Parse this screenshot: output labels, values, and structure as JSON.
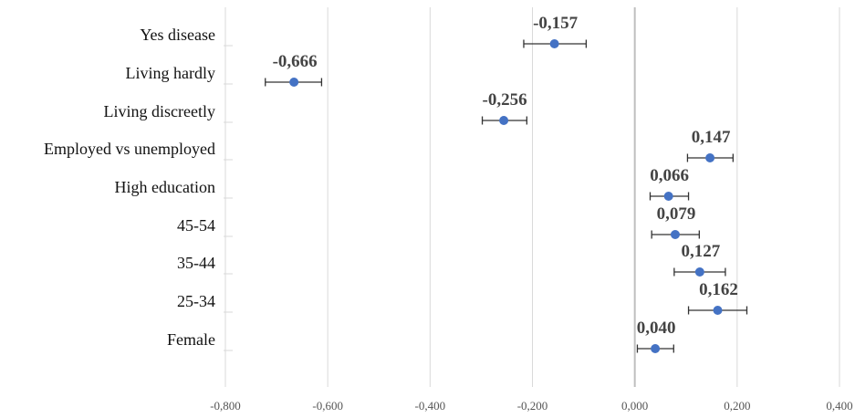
{
  "chart_data": {
    "type": "scatter",
    "title": "",
    "xlabel": "",
    "ylabel": "",
    "xlim": [
      -0.8,
      0.4
    ],
    "x_ticks": [
      -0.8,
      -0.6,
      -0.4,
      -0.2,
      0.0,
      0.2,
      0.4
    ],
    "x_tick_labels": [
      "-0,800",
      "-0,600",
      "-0,400",
      "-0,200",
      "0,000",
      "0,200",
      "0,400"
    ],
    "grid": "vertical",
    "categories": [
      "Yes disease",
      "Living hardly",
      "Living discreetly",
      "Employed vs unemployed",
      "High education",
      "45-54",
      "35-44",
      "25-34",
      "Female"
    ],
    "values": [
      -0.157,
      -0.666,
      -0.256,
      0.147,
      0.066,
      0.079,
      0.127,
      0.162,
      0.04
    ],
    "value_labels": [
      "-0,157",
      "-0,666",
      "-0,256",
      "0,147",
      "0,066",
      "0,079",
      "0,127",
      "0,162",
      "0,040"
    ],
    "ci_low": [
      -0.217,
      -0.722,
      -0.298,
      0.103,
      0.03,
      0.033,
      0.077,
      0.105,
      0.005
    ],
    "ci_high": [
      -0.095,
      -0.612,
      -0.211,
      0.192,
      0.105,
      0.126,
      0.177,
      0.219,
      0.076
    ],
    "colors": {
      "marker": "#4472c4",
      "error_bar": "#333333",
      "zero_line": "#bfbfbf",
      "grid": "#d9d9d9"
    }
  }
}
